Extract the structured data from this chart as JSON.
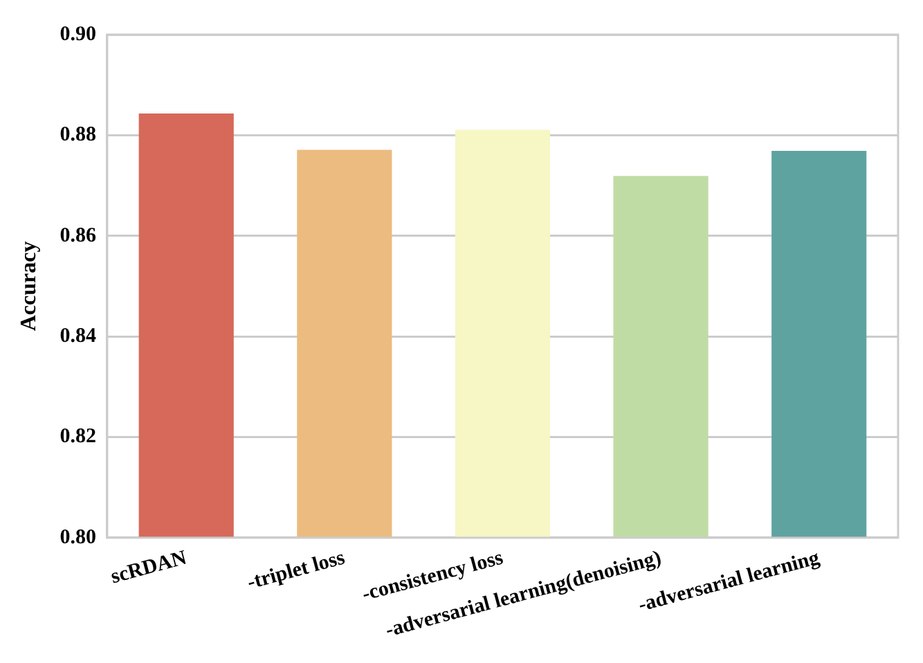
{
  "chart_data": {
    "type": "bar",
    "ylabel": "Accuracy",
    "categories": [
      "scRDAN",
      "-triplet loss",
      "-consistency loss",
      "-adversarial learning(denoising)",
      "-adversarial learning"
    ],
    "values": [
      0.8843,
      0.8771,
      0.8811,
      0.8719,
      0.8769
    ],
    "colors": [
      "#d6695a",
      "#ecbb7f",
      "#f7f6c5",
      "#c0dca5",
      "#5fa3a1"
    ],
    "ylim": [
      0.8,
      0.9
    ],
    "yticks": [
      {
        "value": 0.8,
        "label": "0.80"
      },
      0.82,
      0.84,
      0.86,
      0.88,
      {
        "value": 0.9,
        "label": "0.90"
      }
    ],
    "grid": "y"
  }
}
